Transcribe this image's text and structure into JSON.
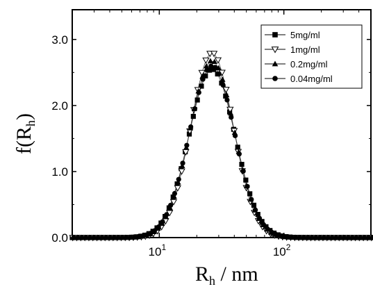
{
  "chart_data": {
    "type": "scatter",
    "title": "",
    "xlabel_main": "R",
    "xlabel_sub": "h",
    "xlabel_tail": " / nm",
    "ylabel_main": "f(R",
    "ylabel_sub": "h",
    "ylabel_tail": ")",
    "x_scale": "log",
    "xlim": [
      2,
      500
    ],
    "ylim": [
      0,
      3.45
    ],
    "x_ticks": [
      {
        "value": 10,
        "base": "10",
        "exp": "1"
      },
      {
        "value": 100,
        "base": "10",
        "exp": "2"
      }
    ],
    "y_ticks": [
      {
        "value": 0,
        "label": "0.0"
      },
      {
        "value": 1,
        "label": "1.0"
      },
      {
        "value": 2,
        "label": "2.0"
      },
      {
        "value": 3,
        "label": "3.0"
      }
    ],
    "grid": false,
    "legend_position": "top-right",
    "series": [
      {
        "name": "5mg/ml",
        "marker": "square",
        "peak_x": 26.5,
        "peak_y": 2.55,
        "width": 0.185
      },
      {
        "name": "1mg/ml",
        "marker": "triangle-down-open",
        "peak_x": 26.5,
        "peak_y": 2.8,
        "width": 0.17
      },
      {
        "name": "0.2mg/ml",
        "marker": "triangle-up",
        "peak_x": 26.5,
        "peak_y": 2.68,
        "width": 0.178
      },
      {
        "name": "0.04mg/ml",
        "marker": "circle",
        "peak_x": 26.5,
        "peak_y": 2.6,
        "width": 0.182
      }
    ]
  }
}
